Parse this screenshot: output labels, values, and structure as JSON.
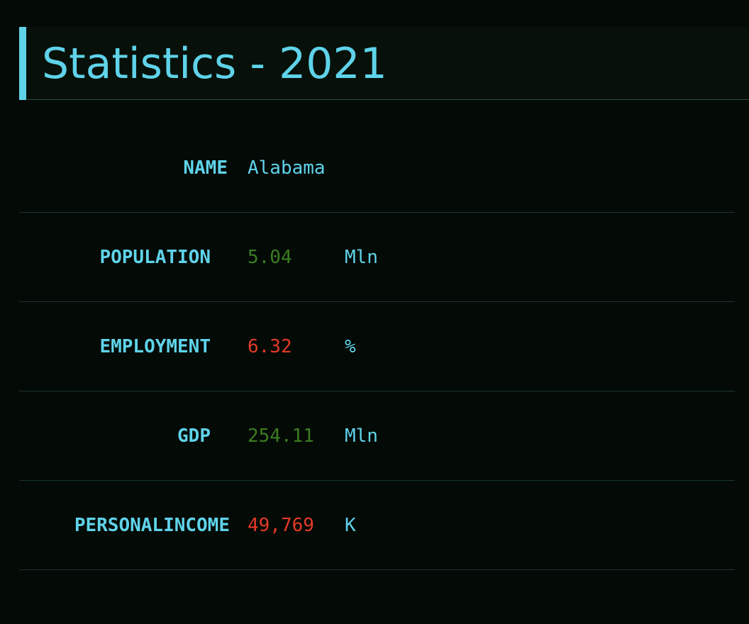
{
  "header": {
    "title": "Statistics - 2021"
  },
  "stats": {
    "name": {
      "label": "NAME",
      "value": "Alabama"
    },
    "population": {
      "label": "POPULATION",
      "value": "5.04",
      "unit": "Mln",
      "trend": "up"
    },
    "employment": {
      "label": "EMPLOYMENT",
      "value": "6.32",
      "unit": "%",
      "trend": "down"
    },
    "gdp": {
      "label": "GDP",
      "value": "254.11",
      "unit": "Mln",
      "trend": "up"
    },
    "personal_income": {
      "label": "PERSONALINCOME",
      "value": "49,769",
      "unit": "K",
      "trend": "down"
    }
  },
  "colors": {
    "background": "#040a05",
    "accent": "#5fd3ea",
    "positive": "#3b7d22",
    "negative": "#e23a27",
    "divider": "#1d3537"
  }
}
